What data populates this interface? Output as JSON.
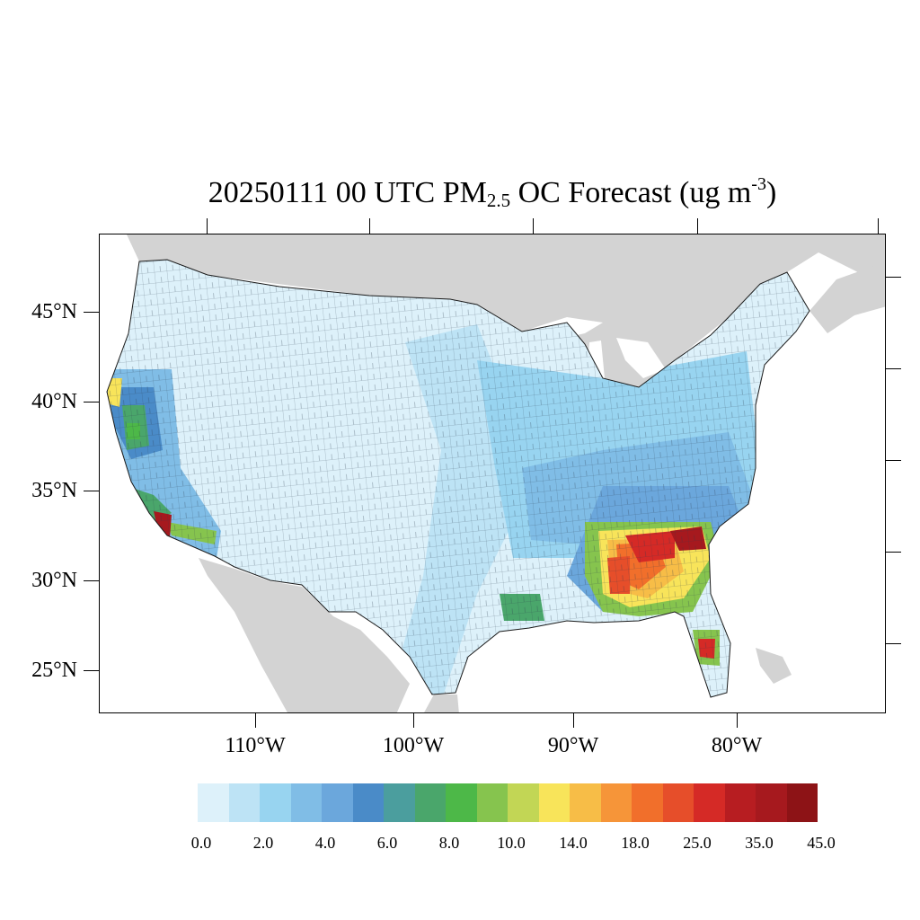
{
  "title": {
    "prefix": "20250111 00 UTC PM",
    "subscript": "2.5",
    "middle": " OC Forecast (ug m",
    "superscript": "-3",
    "suffix": ")"
  },
  "map": {
    "projection": "lambert-conformal",
    "region": "Contiguous United States",
    "background_land_color": "#d3d3d3",
    "water_color": "#ffffff",
    "boundaries": "county",
    "lat_labels": [
      "45°N",
      "40°N",
      "35°N",
      "30°N",
      "25°N"
    ],
    "lon_labels": [
      "110°W",
      "100°W",
      "90°W",
      "80°W"
    ],
    "hotspots": [
      {
        "area": "Georgia / Alabama / South Carolina",
        "level": "25.0–>45.0"
      },
      {
        "area": "Southern California (Los Angeles)",
        "level": ">45.0"
      },
      {
        "area": "Central Florida",
        "level": "14.0–35.0"
      },
      {
        "area": "Northern California Central Valley",
        "level": "6.0–14.0"
      }
    ]
  },
  "colorbar": {
    "colors": [
      "#ddf1fa",
      "#bde3f5",
      "#98d4f0",
      "#80bde6",
      "#6ba7dc",
      "#4a8bc8",
      "#4b9e9e",
      "#4aa66b",
      "#4db848",
      "#86c44e",
      "#c2d655",
      "#f8e45a",
      "#f7bd47",
      "#f69539",
      "#f16f2b",
      "#e64e2a",
      "#d52a26",
      "#b71d21",
      "#a6191e",
      "#8d1316"
    ],
    "labels": [
      "0.0",
      "2.0",
      "4.0",
      "6.0",
      "8.0",
      "10.0",
      "14.0",
      "18.0",
      "25.0",
      "35.0",
      "45.0"
    ]
  }
}
